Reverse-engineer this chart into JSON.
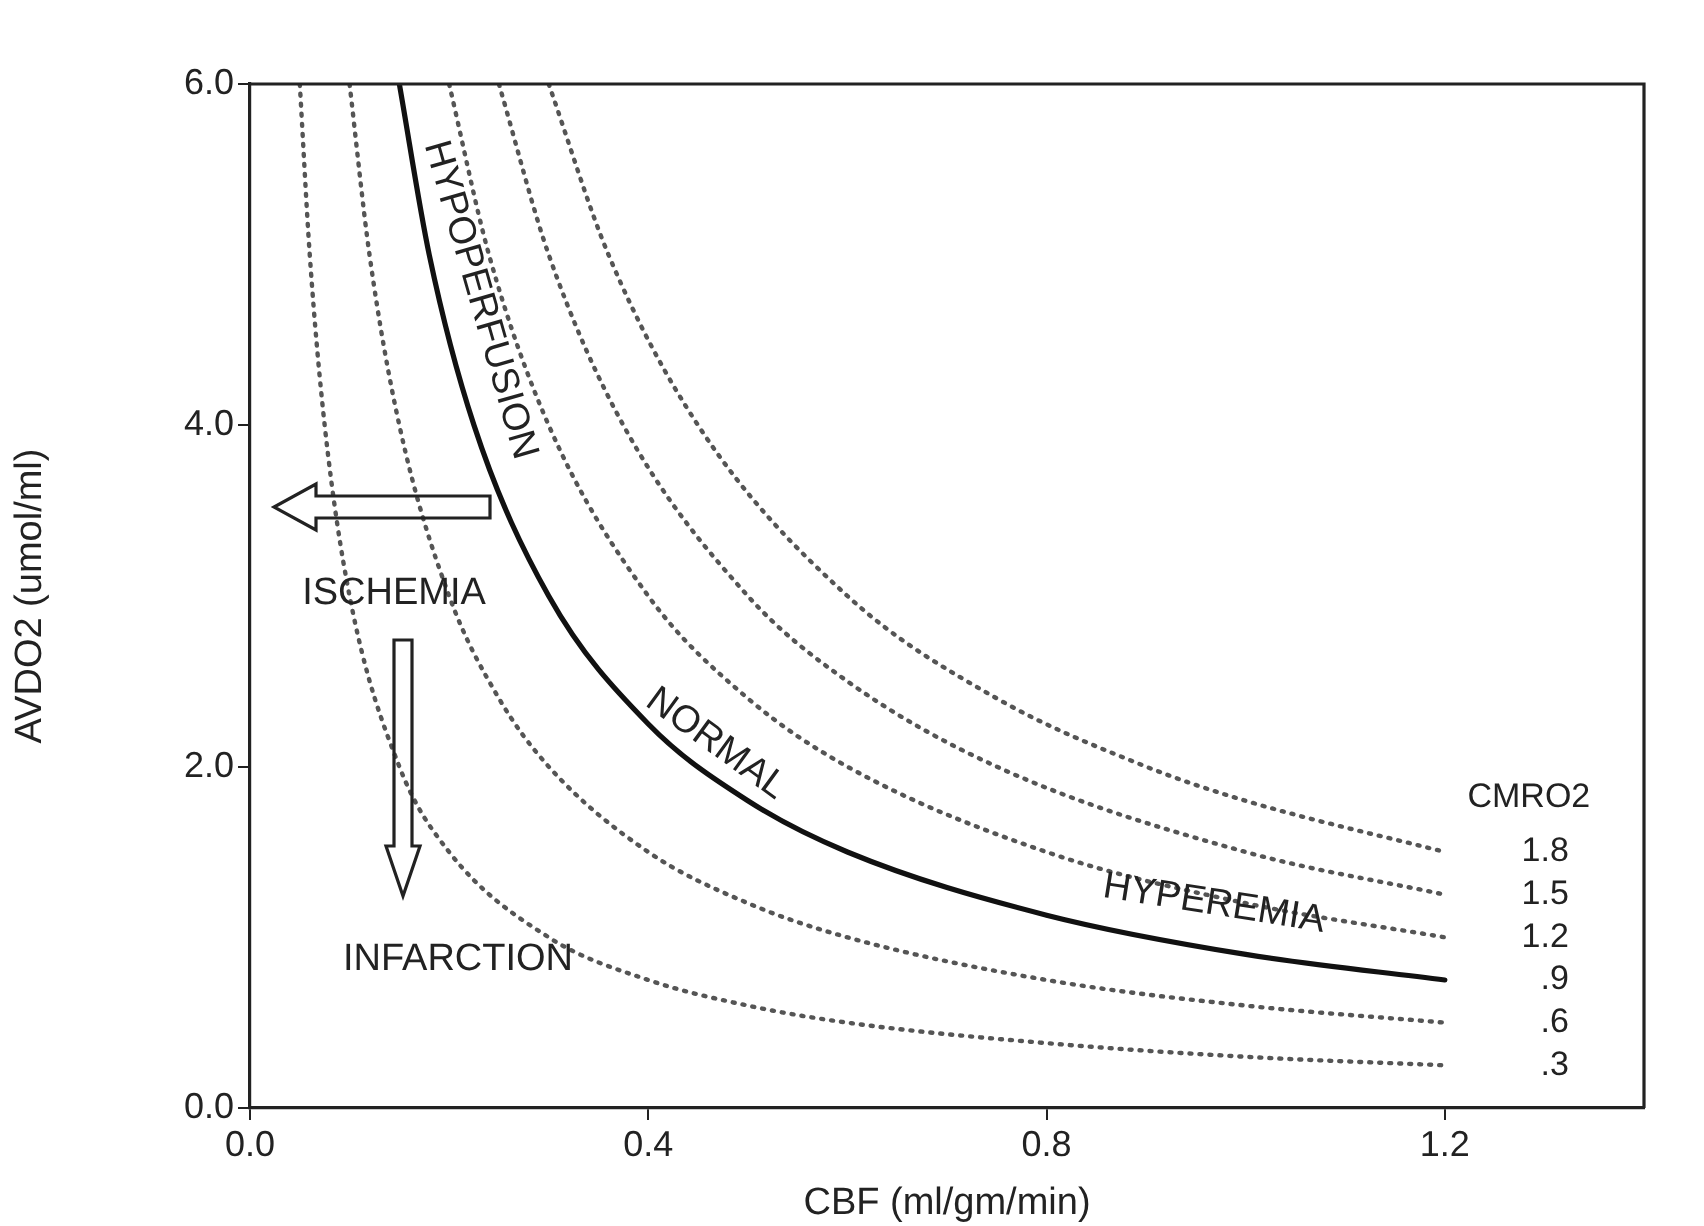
{
  "chart_data": {
    "type": "line",
    "xlabel": "CBF (ml/gm/min)",
    "ylabel": "AVDO2 (umol/ml)",
    "legend_title": "CMRO2",
    "xlim": [
      0,
      1.4
    ],
    "xticks": [
      {
        "value": 0,
        "label": "0.0"
      },
      0.4,
      0.8,
      1.2
    ],
    "ylim": [
      0,
      6
    ],
    "yticks": [
      {
        "value": 0,
        "label": "0.0"
      },
      {
        "value": 2,
        "label": "2.0"
      },
      {
        "value": 4,
        "label": "4.0"
      },
      {
        "value": 6,
        "label": "6.0"
      }
    ],
    "grid": false,
    "legend": false,
    "marker": "none",
    "series": [
      {
        "name": "1.8",
        "color": "#555555",
        "line_style": "dotted",
        "x": [
          0.3,
          0.36,
          0.45,
          0.6,
          0.75,
          0.9,
          1.0,
          1.2
        ],
        "values": [
          6,
          5,
          4,
          3,
          2.4,
          2,
          1.8,
          1.5
        ]
      },
      {
        "name": "1.5",
        "color": "#555555",
        "line_style": "dotted",
        "x": [
          0.25,
          0.3,
          0.375,
          0.5,
          0.6,
          0.75,
          1.0,
          1.2
        ],
        "values": [
          6,
          5,
          4,
          3,
          2.5,
          2,
          1.5,
          1.25
        ]
      },
      {
        "name": "1.2",
        "color": "#555555",
        "line_style": "dotted",
        "x": [
          0.2,
          0.24,
          0.3,
          0.4,
          0.5,
          0.6,
          0.8,
          1.0,
          1.2
        ],
        "values": [
          6,
          5,
          4,
          3,
          2.4,
          2,
          1.5,
          1.2,
          1
        ]
      },
      {
        "name": ".9",
        "color": "#111111",
        "line_style": "solid",
        "x": [
          0.15,
          0.18,
          0.225,
          0.3,
          0.4,
          0.5,
          0.6,
          0.8,
          1.0,
          1.2
        ],
        "values": [
          6,
          5,
          4,
          3,
          2.25,
          1.8,
          1.5,
          1.13,
          0.9,
          0.75
        ]
      },
      {
        "name": ".6",
        "color": "#555555",
        "line_style": "dotted",
        "x": [
          0.1,
          0.12,
          0.15,
          0.2,
          0.25,
          0.3,
          0.4,
          0.5,
          0.6,
          0.8,
          1.0,
          1.2
        ],
        "values": [
          6,
          5,
          4,
          3,
          2.4,
          2,
          1.5,
          1.2,
          1,
          0.75,
          0.6,
          0.5
        ]
      },
      {
        "name": ".3",
        "color": "#555555",
        "line_style": "dotted",
        "x": [
          0.05,
          0.06,
          0.075,
          0.1,
          0.15,
          0.2,
          0.3,
          0.4,
          0.5,
          0.6,
          0.8,
          1.0,
          1.2
        ],
        "values": [
          6,
          5,
          4,
          3,
          2,
          1.5,
          1,
          0.75,
          0.6,
          0.5,
          0.38,
          0.3,
          0.25
        ]
      }
    ],
    "annotations": [
      "HYPOPERFUSION",
      "NORMAL",
      "HYPEREMIA",
      "ISCHEMIA",
      "INFARCTION"
    ]
  }
}
